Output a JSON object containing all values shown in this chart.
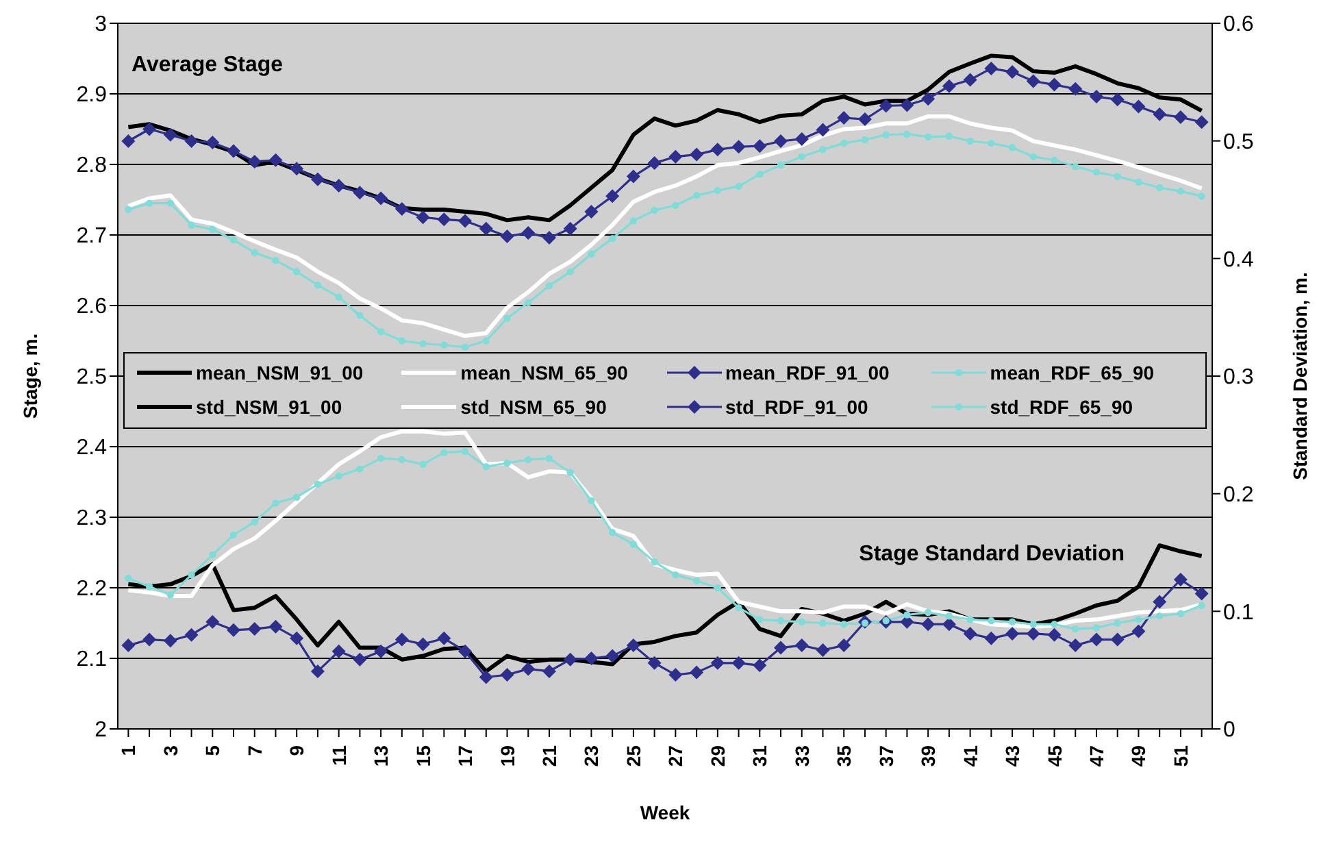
{
  "chart_data": {
    "type": "line",
    "xlabel": "Week",
    "ylabel": "Stage, m.",
    "y2label": "Standard Deviation, m.",
    "annotations": [
      "Average Stage",
      "Stage Standard Deviation"
    ],
    "categories": [
      "1",
      null,
      "3",
      null,
      "5",
      null,
      "7",
      null,
      "9",
      null,
      "11",
      null,
      "13",
      null,
      "15",
      null,
      "17",
      null,
      "19",
      null,
      "21",
      null,
      "23",
      null,
      "25",
      null,
      "27",
      null,
      "29",
      null,
      "31",
      null,
      "33",
      null,
      "35",
      null,
      "37",
      null,
      "39",
      null,
      "41",
      null,
      "43",
      null,
      "45",
      null,
      "47",
      null,
      "49",
      null,
      "51",
      null
    ],
    "ylim": [
      2,
      3
    ],
    "yticks": [
      2,
      2.1,
      2.2,
      2.3,
      2.4,
      2.5,
      2.6,
      2.7,
      2.8,
      2.9,
      3
    ],
    "y2lim": [
      0,
      0.6
    ],
    "y2ticks": [
      0,
      0.1,
      0.2,
      0.3,
      0.4,
      0.5,
      0.6
    ],
    "grid": "y",
    "legend": "center",
    "series": [
      {
        "name": "mean_NSM_91_00",
        "color": "#000000",
        "marker": "none",
        "values": [
          2.853,
          2.857,
          2.848,
          2.836,
          2.828,
          2.818,
          2.799,
          2.804,
          2.792,
          2.78,
          2.77,
          2.762,
          2.752,
          2.738,
          2.736,
          2.736,
          2.733,
          2.73,
          2.721,
          2.725,
          2.721,
          2.742,
          2.767,
          2.792,
          2.842,
          2.865,
          2.855,
          2.862,
          2.877,
          2.871,
          2.86,
          2.869,
          2.871,
          2.89,
          2.896,
          2.885,
          2.89,
          2.89,
          2.906,
          2.931,
          2.943,
          2.954,
          2.952,
          2.932,
          2.93,
          2.939,
          2.928,
          2.915,
          2.908,
          2.895,
          2.892,
          2.876
        ]
      },
      {
        "name": "mean_NSM_65_90",
        "color": "#ffffff",
        "marker": "none",
        "values": [
          2.741,
          2.752,
          2.756,
          2.722,
          2.716,
          2.704,
          2.691,
          2.679,
          2.668,
          2.648,
          2.632,
          2.61,
          2.596,
          2.579,
          2.575,
          2.566,
          2.557,
          2.561,
          2.597,
          2.619,
          2.645,
          2.662,
          2.686,
          2.714,
          2.747,
          2.761,
          2.77,
          2.783,
          2.799,
          2.802,
          2.81,
          2.819,
          2.827,
          2.841,
          2.85,
          2.852,
          2.858,
          2.858,
          2.868,
          2.868,
          2.858,
          2.852,
          2.848,
          2.833,
          2.827,
          2.821,
          2.813,
          2.805,
          2.796,
          2.786,
          2.777,
          2.766
        ]
      },
      {
        "name": "mean_RDF_91_00",
        "color": "#2e2e8c",
        "marker": "diamond",
        "values": [
          2.833,
          2.85,
          2.842,
          2.833,
          2.831,
          2.819,
          2.804,
          2.806,
          2.794,
          2.779,
          2.77,
          2.76,
          2.752,
          2.737,
          2.725,
          2.722,
          2.72,
          2.709,
          2.698,
          2.703,
          2.696,
          2.709,
          2.733,
          2.755,
          2.783,
          2.802,
          2.811,
          2.814,
          2.821,
          2.825,
          2.826,
          2.833,
          2.836,
          2.849,
          2.866,
          2.864,
          2.883,
          2.884,
          2.893,
          2.911,
          2.92,
          2.936,
          2.931,
          2.918,
          2.913,
          2.907,
          2.896,
          2.892,
          2.882,
          2.871,
          2.867,
          2.86
        ]
      },
      {
        "name": "mean_RDF_65_90",
        "color": "#7fdcd8",
        "marker": "circle",
        "values": [
          2.736,
          2.745,
          2.745,
          2.714,
          2.708,
          2.693,
          2.675,
          2.664,
          2.648,
          2.629,
          2.612,
          2.586,
          2.563,
          2.55,
          2.546,
          2.544,
          2.541,
          2.55,
          2.582,
          2.604,
          2.628,
          2.648,
          2.673,
          2.695,
          2.72,
          2.735,
          2.742,
          2.756,
          2.763,
          2.769,
          2.786,
          2.799,
          2.811,
          2.821,
          2.83,
          2.835,
          2.842,
          2.843,
          2.839,
          2.84,
          2.833,
          2.83,
          2.824,
          2.811,
          2.806,
          2.797,
          2.789,
          2.783,
          2.775,
          2.767,
          2.762,
          2.755
        ]
      },
      {
        "name": "std_NSM_91_00",
        "color": "#000000",
        "marker": "none",
        "axis": "y2",
        "values": [
          0.123,
          0.121,
          0.123,
          0.13,
          0.14,
          0.101,
          0.103,
          0.113,
          0.093,
          0.071,
          0.091,
          0.069,
          0.069,
          0.059,
          0.062,
          0.068,
          0.069,
          0.049,
          0.062,
          0.057,
          0.059,
          0.059,
          0.057,
          0.055,
          0.072,
          0.074,
          0.079,
          0.082,
          0.097,
          0.108,
          0.085,
          0.079,
          0.102,
          0.098,
          0.092,
          0.098,
          0.108,
          0.098,
          0.097,
          0.1,
          0.093,
          0.093,
          0.093,
          0.089,
          0.092,
          0.098,
          0.105,
          0.109,
          0.121,
          0.156,
          0.151,
          0.147
        ]
      },
      {
        "name": "std_NSM_65_90",
        "color": "#ffffff",
        "marker": "none",
        "axis": "y2",
        "values": [
          0.118,
          0.116,
          0.113,
          0.113,
          0.139,
          0.153,
          0.162,
          0.177,
          0.193,
          0.209,
          0.225,
          0.236,
          0.248,
          0.253,
          0.253,
          0.251,
          0.252,
          0.225,
          0.226,
          0.214,
          0.219,
          0.218,
          0.196,
          0.17,
          0.164,
          0.14,
          0.135,
          0.131,
          0.132,
          0.108,
          0.104,
          0.1,
          0.1,
          0.099,
          0.104,
          0.104,
          0.098,
          0.106,
          0.1,
          0.098,
          0.093,
          0.089,
          0.088,
          0.087,
          0.088,
          0.092,
          0.093,
          0.096,
          0.099,
          0.1,
          0.101,
          0.106
        ]
      },
      {
        "name": "std_RDF_91_00",
        "color": "#2e2e8c",
        "marker": "diamond",
        "axis": "y2",
        "values": [
          0.071,
          0.076,
          0.075,
          0.08,
          0.091,
          0.084,
          0.085,
          0.087,
          0.077,
          0.049,
          0.066,
          0.059,
          0.066,
          0.076,
          0.072,
          0.077,
          0.066,
          0.044,
          0.046,
          0.051,
          0.049,
          0.059,
          0.06,
          0.062,
          0.071,
          0.056,
          0.046,
          0.048,
          0.056,
          0.056,
          0.054,
          0.069,
          0.071,
          0.067,
          0.071,
          0.091,
          0.091,
          0.091,
          0.089,
          0.089,
          0.081,
          0.077,
          0.081,
          0.081,
          0.08,
          0.071,
          0.076,
          0.076,
          0.083,
          0.108,
          0.127,
          0.115
        ]
      },
      {
        "name": "std_RDF_65_90",
        "color": "#7fdcd8",
        "marker": "circle",
        "axis": "y2",
        "values": [
          0.128,
          0.121,
          0.114,
          0.131,
          0.148,
          0.165,
          0.176,
          0.192,
          0.197,
          0.208,
          0.215,
          0.221,
          0.23,
          0.229,
          0.225,
          0.235,
          0.236,
          0.223,
          0.226,
          0.229,
          0.23,
          0.218,
          0.194,
          0.167,
          0.157,
          0.142,
          0.131,
          0.126,
          0.12,
          0.103,
          0.093,
          0.092,
          0.091,
          0.09,
          0.089,
          0.09,
          0.092,
          0.097,
          0.099,
          0.096,
          0.093,
          0.092,
          0.091,
          0.089,
          0.089,
          0.085,
          0.086,
          0.09,
          0.093,
          0.096,
          0.098,
          0.105
        ]
      }
    ]
  }
}
